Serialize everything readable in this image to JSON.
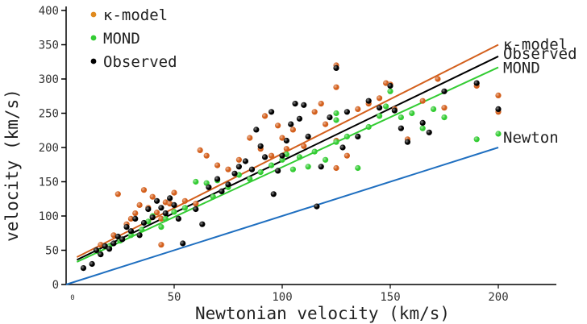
{
  "chart_data": {
    "type": "scatter",
    "title": "",
    "xlabel": "Newtonian velocity (km/s)",
    "ylabel": "velocity (km/s)",
    "xlim": [
      0,
      220
    ],
    "ylim": [
      0,
      400
    ],
    "x_ticks": [
      {
        "value": 0,
        "label": "0"
      },
      {
        "value": 50,
        "label": "50"
      },
      {
        "value": 100,
        "label": "100"
      },
      {
        "value": 150,
        "label": "150"
      },
      {
        "value": 200,
        "label": "200"
      }
    ],
    "y_ticks": [
      {
        "value": 0,
        "label": "0"
      },
      {
        "value": 50,
        "label": "50"
      },
      {
        "value": 100,
        "label": "100"
      },
      {
        "value": 150,
        "label": "150"
      },
      {
        "value": 200,
        "label": "200"
      },
      {
        "value": 250,
        "label": "250"
      },
      {
        "value": 300,
        "label": "300"
      },
      {
        "value": 350,
        "label": "350"
      },
      {
        "value": 400,
        "label": "400"
      }
    ],
    "legend": {
      "placement": "top-left",
      "entries": [
        {
          "label": "κ-model",
          "color": "#e08a1e"
        },
        {
          "label": "MOND",
          "color": "#33cc33"
        },
        {
          "label": "Observed",
          "color": "#000000"
        }
      ]
    },
    "lines": [
      {
        "name": "κ-model",
        "color": "#d35f1c",
        "x": [
          5,
          200
        ],
        "y": [
          40,
          350
        ]
      },
      {
        "name": "Observed",
        "color": "#000000",
        "x": [
          5,
          200
        ],
        "y": [
          36,
          333
        ]
      },
      {
        "name": "MOND",
        "color": "#33cc33",
        "x": [
          5,
          200
        ],
        "y": [
          33,
          317
        ]
      },
      {
        "name": "Newton",
        "color": "#1f6fc0",
        "x": [
          0,
          200
        ],
        "y": [
          0,
          200
        ]
      }
    ],
    "series": [
      {
        "name": "κ-model",
        "color": "#d35f1c",
        "points": [
          [
            16,
            58
          ],
          [
            22,
            72
          ],
          [
            24,
            132
          ],
          [
            28,
            88
          ],
          [
            30,
            96
          ],
          [
            32,
            104
          ],
          [
            34,
            116
          ],
          [
            36,
            138
          ],
          [
            38,
            112
          ],
          [
            40,
            128
          ],
          [
            42,
            105
          ],
          [
            44,
            96
          ],
          [
            44,
            58
          ],
          [
            46,
            120
          ],
          [
            48,
            118
          ],
          [
            50,
            134
          ],
          [
            55,
            122
          ],
          [
            60,
            118
          ],
          [
            62,
            196
          ],
          [
            65,
            188
          ],
          [
            70,
            174
          ],
          [
            75,
            168
          ],
          [
            80,
            182
          ],
          [
            85,
            214
          ],
          [
            90,
            198
          ],
          [
            92,
            246
          ],
          [
            95,
            188
          ],
          [
            98,
            232
          ],
          [
            100,
            214
          ],
          [
            102,
            198
          ],
          [
            105,
            226
          ],
          [
            110,
            202
          ],
          [
            115,
            252
          ],
          [
            118,
            264
          ],
          [
            120,
            234
          ],
          [
            125,
            320
          ],
          [
            125,
            288
          ],
          [
            125,
            210
          ],
          [
            125,
            170
          ],
          [
            130,
            188
          ],
          [
            135,
            256
          ],
          [
            140,
            264
          ],
          [
            145,
            272
          ],
          [
            148,
            294
          ],
          [
            150,
            292
          ],
          [
            152,
            256
          ],
          [
            158,
            212
          ],
          [
            165,
            268
          ],
          [
            172,
            300
          ],
          [
            175,
            258
          ],
          [
            190,
            290
          ],
          [
            200,
            276
          ],
          [
            200,
            252
          ]
        ]
      },
      {
        "name": "MOND",
        "color": "#33cc33",
        "points": [
          [
            15,
            48
          ],
          [
            20,
            56
          ],
          [
            25,
            64
          ],
          [
            30,
            72
          ],
          [
            35,
            80
          ],
          [
            38,
            92
          ],
          [
            40,
            100
          ],
          [
            44,
            84
          ],
          [
            46,
            96
          ],
          [
            50,
            106
          ],
          [
            55,
            112
          ],
          [
            60,
            150
          ],
          [
            65,
            148
          ],
          [
            68,
            128
          ],
          [
            70,
            152
          ],
          [
            75,
            142
          ],
          [
            80,
            160
          ],
          [
            85,
            154
          ],
          [
            90,
            164
          ],
          [
            95,
            174
          ],
          [
            100,
            182
          ],
          [
            102,
            190
          ],
          [
            105,
            168
          ],
          [
            108,
            186
          ],
          [
            112,
            172
          ],
          [
            115,
            194
          ],
          [
            120,
            182
          ],
          [
            125,
            250
          ],
          [
            125,
            208
          ],
          [
            125,
            240
          ],
          [
            130,
            216
          ],
          [
            135,
            170
          ],
          [
            140,
            230
          ],
          [
            145,
            246
          ],
          [
            148,
            260
          ],
          [
            150,
            282
          ],
          [
            155,
            244
          ],
          [
            160,
            250
          ],
          [
            165,
            228
          ],
          [
            170,
            256
          ],
          [
            175,
            244
          ],
          [
            190,
            212
          ],
          [
            200,
            220
          ]
        ]
      },
      {
        "name": "Observed",
        "color": "#000000",
        "points": [
          [
            8,
            24
          ],
          [
            12,
            30
          ],
          [
            14,
            50
          ],
          [
            16,
            44
          ],
          [
            18,
            56
          ],
          [
            20,
            52
          ],
          [
            22,
            60
          ],
          [
            24,
            70
          ],
          [
            26,
            66
          ],
          [
            28,
            84
          ],
          [
            30,
            78
          ],
          [
            32,
            96
          ],
          [
            34,
            72
          ],
          [
            36,
            90
          ],
          [
            38,
            110
          ],
          [
            40,
            98
          ],
          [
            42,
            122
          ],
          [
            44,
            112
          ],
          [
            46,
            104
          ],
          [
            48,
            126
          ],
          [
            50,
            116
          ],
          [
            52,
            96
          ],
          [
            54,
            60
          ],
          [
            60,
            110
          ],
          [
            63,
            88
          ],
          [
            66,
            142
          ],
          [
            70,
            154
          ],
          [
            72,
            136
          ],
          [
            75,
            146
          ],
          [
            78,
            162
          ],
          [
            80,
            172
          ],
          [
            83,
            180
          ],
          [
            86,
            168
          ],
          [
            88,
            226
          ],
          [
            90,
            202
          ],
          [
            92,
            186
          ],
          [
            95,
            252
          ],
          [
            96,
            132
          ],
          [
            98,
            166
          ],
          [
            100,
            188
          ],
          [
            102,
            210
          ],
          [
            104,
            234
          ],
          [
            106,
            264
          ],
          [
            108,
            242
          ],
          [
            110,
            262
          ],
          [
            112,
            216
          ],
          [
            116,
            114
          ],
          [
            118,
            172
          ],
          [
            122,
            244
          ],
          [
            125,
            316
          ],
          [
            128,
            200
          ],
          [
            130,
            252
          ],
          [
            135,
            216
          ],
          [
            140,
            268
          ],
          [
            145,
            258
          ],
          [
            150,
            290
          ],
          [
            152,
            254
          ],
          [
            155,
            228
          ],
          [
            158,
            208
          ],
          [
            165,
            236
          ],
          [
            168,
            222
          ],
          [
            175,
            282
          ],
          [
            190,
            294
          ],
          [
            200,
            256
          ]
        ]
      }
    ],
    "line_labels": [
      {
        "text": "κ-model",
        "line": "κ-model"
      },
      {
        "text": "Observed",
        "line": "Observed"
      },
      {
        "text": "MOND",
        "line": "MOND"
      },
      {
        "text": "Newton",
        "line": "Newton"
      }
    ]
  }
}
